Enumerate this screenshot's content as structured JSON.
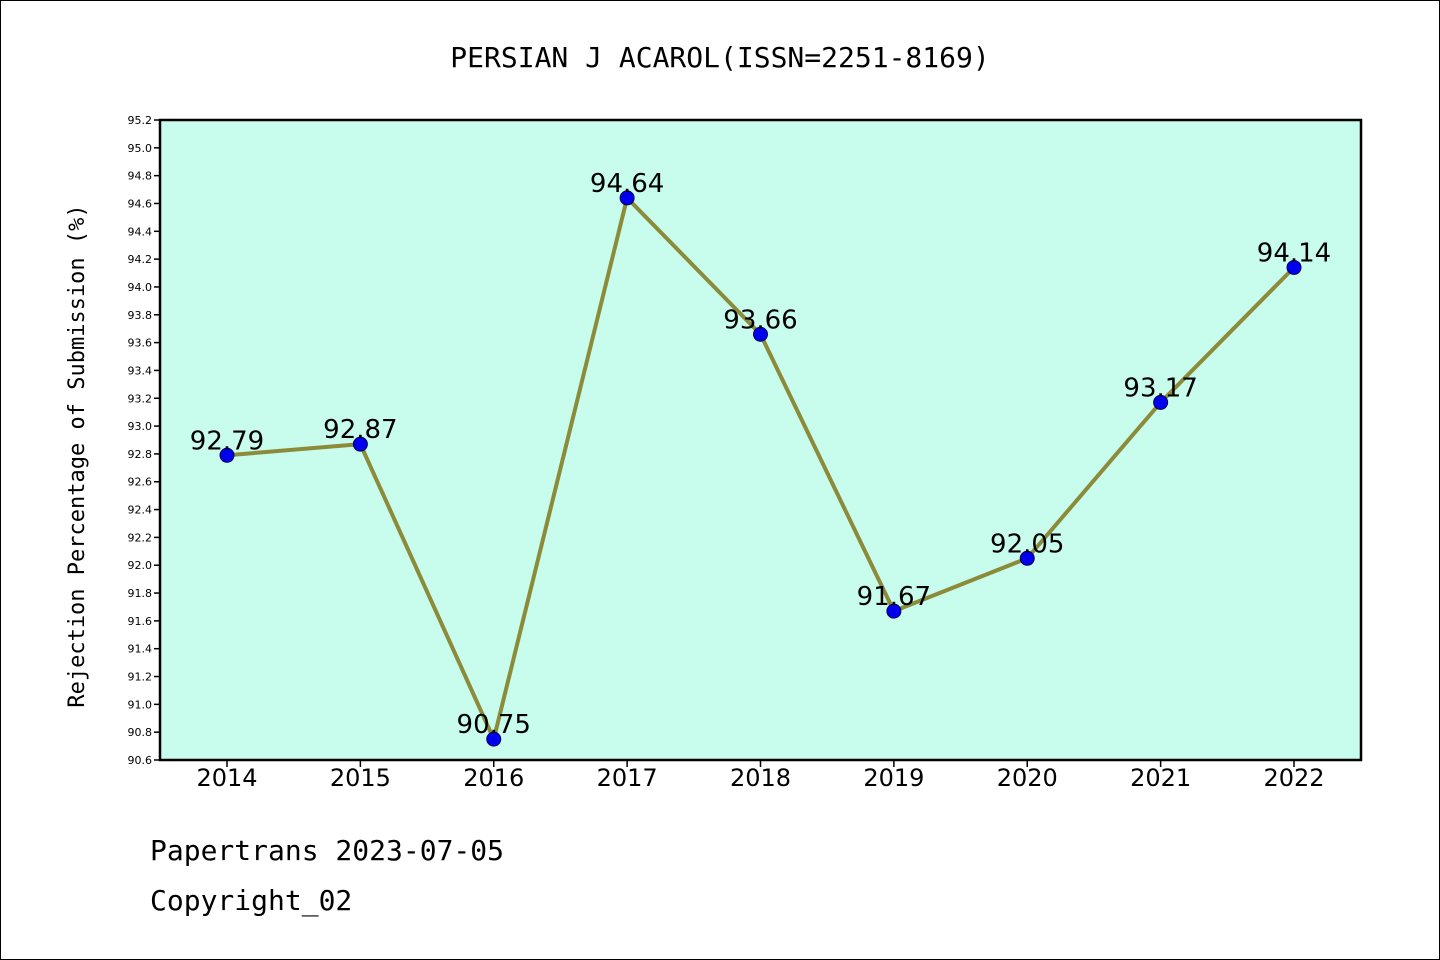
{
  "chart_data": {
    "type": "line",
    "title": "PERSIAN J ACAROL(ISSN=2251-8169)",
    "xlabel": "",
    "ylabel": "Rejection Percentage of Submission (%)",
    "categories": [
      "2014",
      "2015",
      "2016",
      "2017",
      "2018",
      "2019",
      "2020",
      "2021",
      "2022"
    ],
    "series": [
      {
        "values": [
          92.79,
          92.87,
          90.75,
          94.64,
          93.66,
          91.67,
          92.05,
          93.17,
          94.14
        ],
        "line_color": "#8b8b3a",
        "marker_color": "#0000ee"
      }
    ],
    "data_labels": [
      "92.79",
      "92.87",
      "90.75",
      "94.64",
      "93.66",
      "91.67",
      "92.05",
      "93.17",
      "94.14"
    ],
    "ylim": [
      90.6,
      95.2
    ],
    "yticks": [
      "90.6",
      "90.8",
      "91.0",
      "91.2",
      "91.4",
      "91.6",
      "91.8",
      "92.0",
      "92.2",
      "92.4",
      "92.6",
      "92.8",
      "93.0",
      "93.2",
      "93.4",
      "93.6",
      "93.8",
      "94.0",
      "94.2",
      "94.4",
      "94.6",
      "94.8",
      "95.0",
      "95.2"
    ],
    "plot_background": "#c8fcec",
    "grid": false,
    "legend": "none"
  },
  "footer": {
    "source": "Papertrans 2023-07-05",
    "copyright": "Copyright_02"
  }
}
